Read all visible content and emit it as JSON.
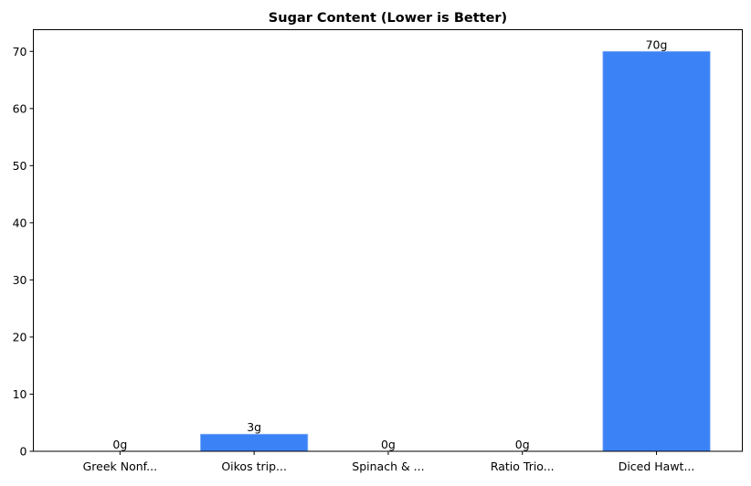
{
  "chart_data": {
    "type": "bar",
    "title": "Sugar Content (Lower is Better)",
    "xlabel": "",
    "ylabel": "",
    "categories": [
      "Greek Nonf...",
      "Oikos trip...",
      "Spinach & ...",
      "Ratio Trio...",
      "Diced Hawt..."
    ],
    "values": [
      0,
      3,
      0,
      0,
      70
    ],
    "data_labels": [
      "0g",
      "3g",
      "0g",
      "0g",
      "70g"
    ],
    "ylim": [
      0,
      73.8
    ],
    "yticks": [
      0,
      10,
      20,
      30,
      40,
      50,
      60,
      70
    ],
    "grid": false,
    "bar_color": "#3b82f6",
    "bar_edge_color": "#93b8f8"
  }
}
